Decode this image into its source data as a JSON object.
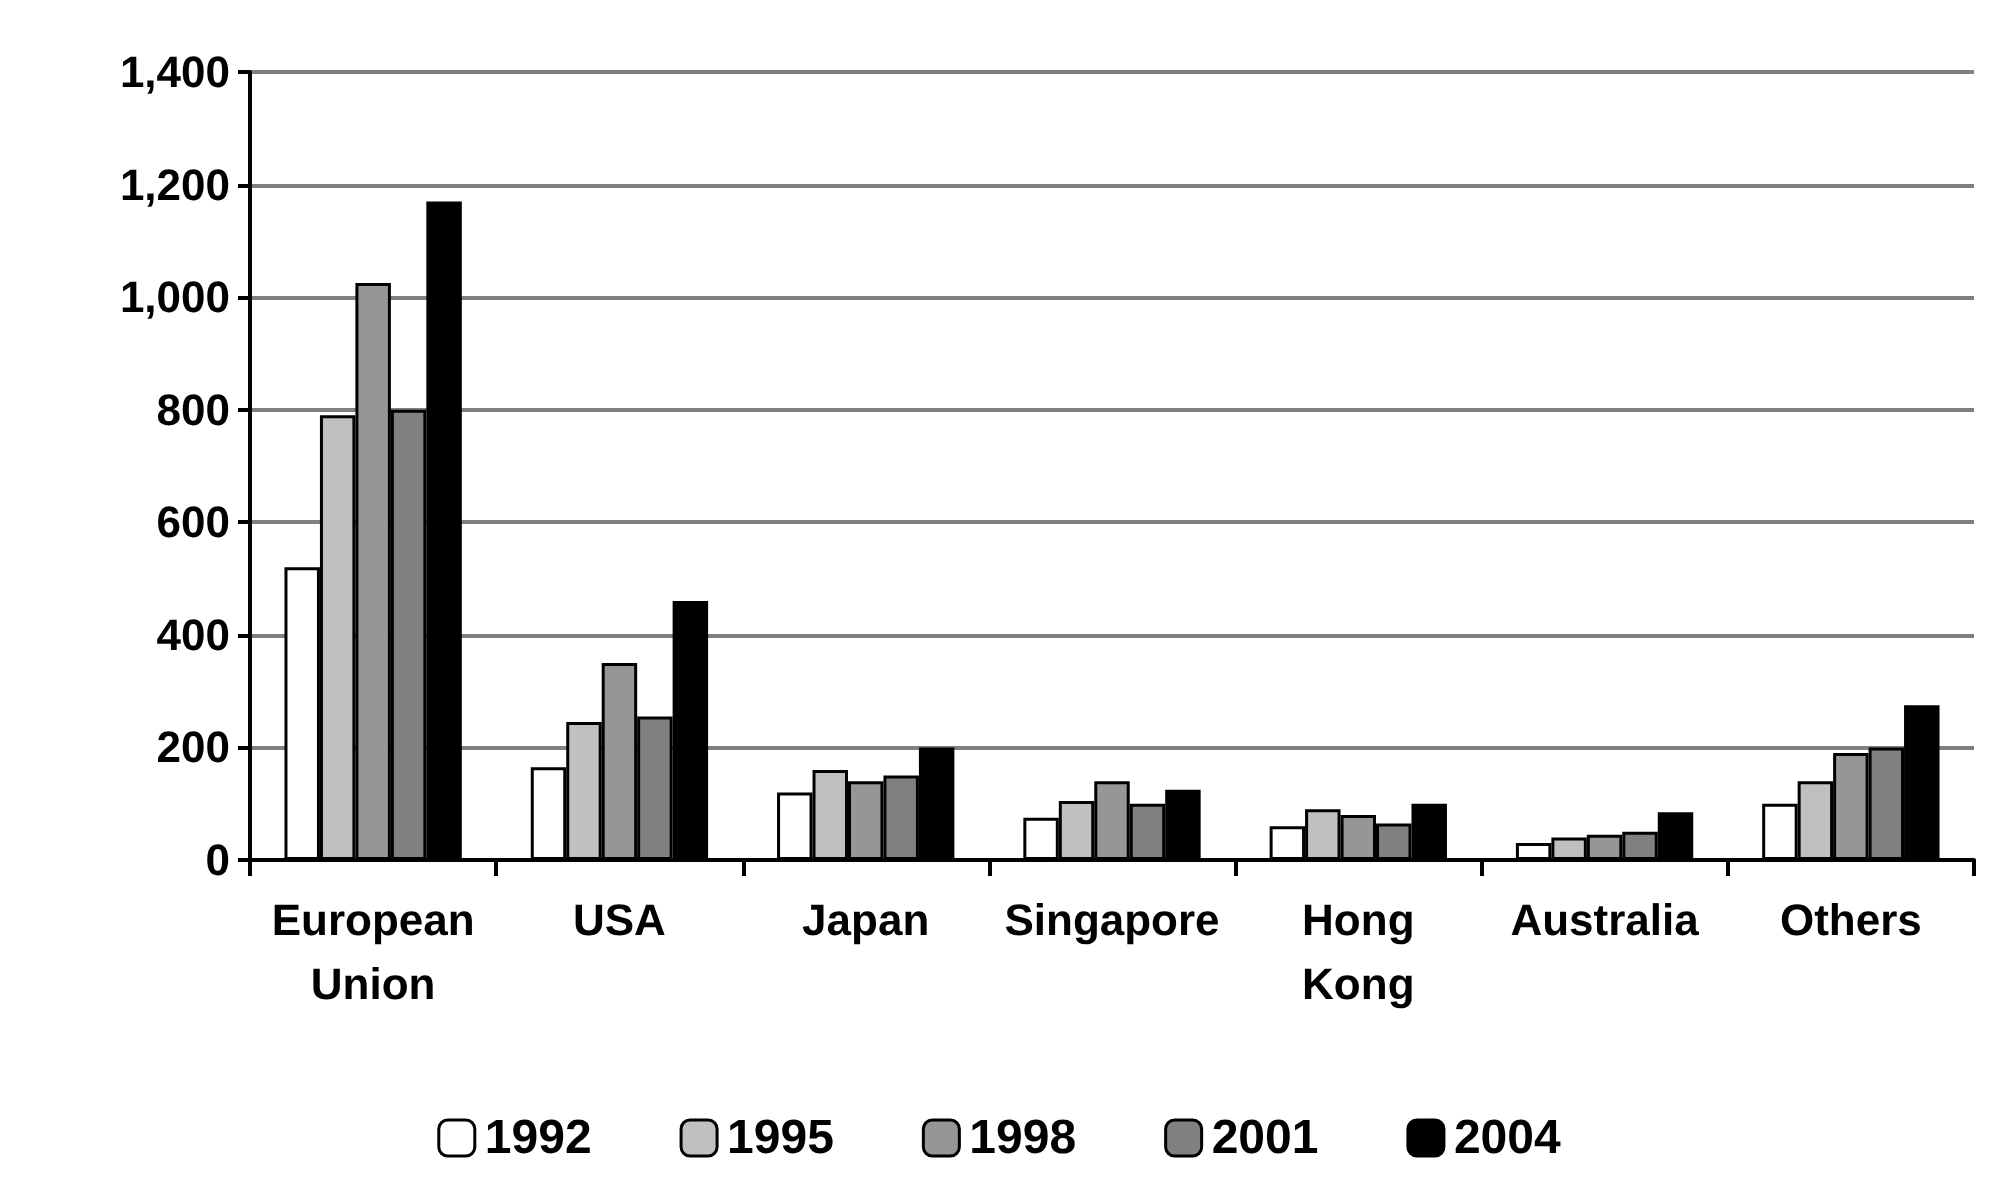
{
  "chart_data": {
    "type": "bar",
    "categories": [
      "European\nUnion",
      "USA",
      "Japan",
      "Singapore",
      "Hong\nKong",
      "Australia",
      "Others"
    ],
    "series": [
      {
        "name": "1992",
        "color": "#ffffff",
        "values": [
          520,
          165,
          120,
          75,
          60,
          30,
          100
        ]
      },
      {
        "name": "1995",
        "color": "#c0c0c0",
        "values": [
          790,
          245,
          160,
          105,
          90,
          40,
          140
        ]
      },
      {
        "name": "1998",
        "color": "#969696",
        "values": [
          1025,
          350,
          140,
          140,
          80,
          45,
          190
        ]
      },
      {
        "name": "2001",
        "color": "#808080",
        "values": [
          800,
          255,
          150,
          100,
          65,
          50,
          200
        ]
      },
      {
        "name": "2004",
        "color": "#000000",
        "values": [
          1170,
          460,
          200,
          125,
          100,
          85,
          275
        ]
      }
    ],
    "ylim": [
      0,
      1400
    ],
    "yticks": [
      0,
      200,
      400,
      600,
      800,
      {
        "value": 1000,
        "label": "1,000"
      },
      {
        "value": 1200,
        "label": "1,200"
      },
      {
        "value": 1400,
        "label": "1,400"
      }
    ],
    "grid": "y",
    "legend": "bottom"
  }
}
